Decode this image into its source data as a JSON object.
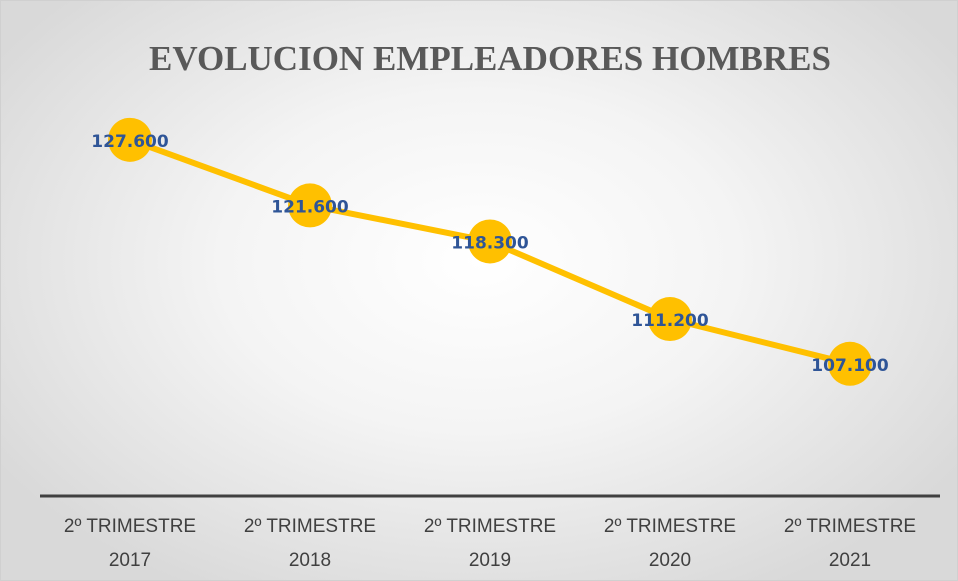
{
  "chart_data": {
    "type": "line",
    "title": "EVOLUCION EMPLEADORES HOMBRES",
    "categories": [
      "2º TRIMESTRE 2017",
      "2º TRIMESTRE 2018",
      "2º TRIMESTRE 2019",
      "2º TRIMESTRE 2020",
      "2º TRIMESTRE 2021"
    ],
    "series": [
      {
        "name": "Empleadores hombres",
        "color": "#ffc000",
        "values": [
          127600,
          121600,
          118300,
          111200,
          107100
        ],
        "value_labels": [
          "127.600",
          "121.600",
          "118.300",
          "111.200",
          "107.100"
        ]
      }
    ],
    "ylim": [
      95000,
      135000
    ]
  }
}
